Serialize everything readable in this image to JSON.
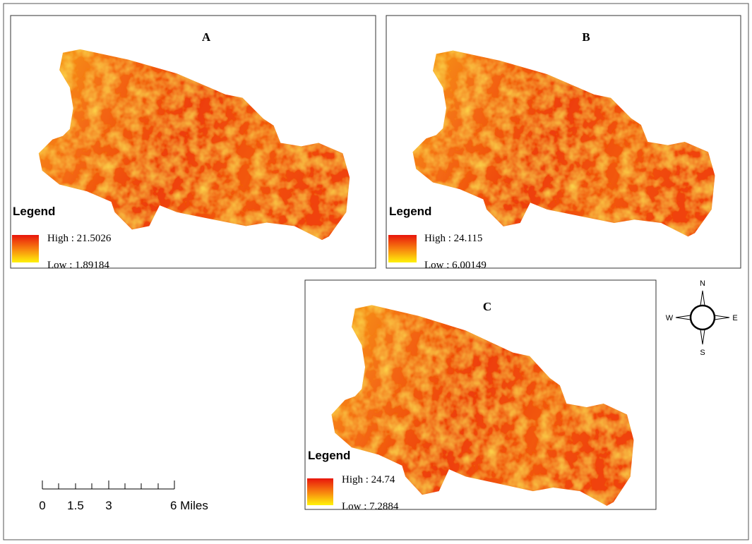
{
  "panels": [
    {
      "title": "A",
      "legend": {
        "title": "Legend",
        "high": "High : 21.5026",
        "low": "Low : 1.89184"
      }
    },
    {
      "title": "B",
      "legend": {
        "title": "Legend",
        "high": "High : 24.115",
        "low": "Low : 6.00149"
      }
    },
    {
      "title": "C",
      "legend": {
        "title": "Legend",
        "high": "High : 24.74",
        "low": "Low : 7.2884"
      }
    }
  ],
  "compass": {
    "n": "N",
    "e": "E",
    "s": "S",
    "w": "W"
  },
  "scale_bar": {
    "labels": [
      "0",
      "1.5",
      "3",
      "6 Miles"
    ]
  }
}
